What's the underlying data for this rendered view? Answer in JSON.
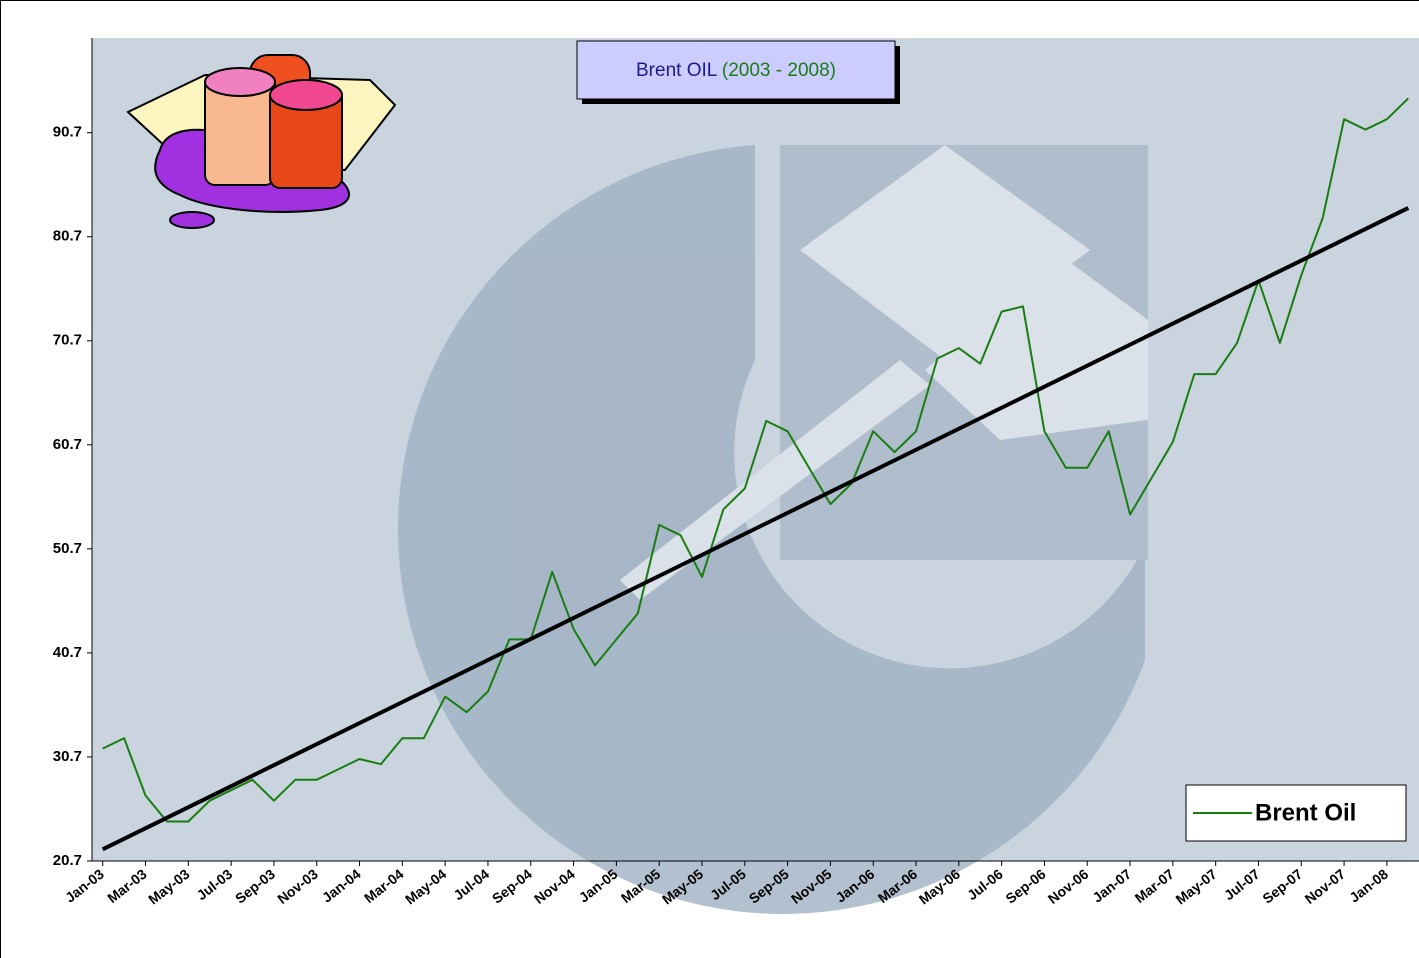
{
  "chart_data": {
    "type": "line",
    "title": "Brent OIL",
    "subtitle": "(2003 - 2008)",
    "categories": [
      "Jan-03",
      null,
      "Mar-03",
      null,
      "May-03",
      null,
      "Jul-03",
      null,
      "Sep-03",
      null,
      "Nov-03",
      null,
      "Jan-04",
      null,
      "Mar-04",
      null,
      "May-04",
      null,
      "Jul-04",
      null,
      "Sep-04",
      null,
      "Nov-04",
      null,
      "Jan-05",
      null,
      "Mar-05",
      null,
      "May-05",
      null,
      "Jul-05",
      null,
      "Sep-05",
      null,
      "Nov-05",
      null,
      "Jan-06",
      null,
      "Mar-06",
      null,
      "May-06",
      null,
      "Jul-06",
      null,
      "Sep-06",
      null,
      "Nov-06",
      null,
      "Jan-07",
      null,
      "Mar-07",
      null,
      "May-07",
      null,
      "Jul-07",
      null,
      "Sep-07",
      null,
      "Nov-07",
      null,
      "Jan-08",
      null
    ],
    "series": [
      {
        "name": "Brent Oil",
        "color": "#1a7d12",
        "values": [
          31.5,
          32.5,
          27,
          24.5,
          24.5,
          26.5,
          27.5,
          28.5,
          26.5,
          28.5,
          28.5,
          29.5,
          30.5,
          30,
          32.5,
          32.5,
          36.5,
          35,
          37,
          42,
          42,
          48.5,
          43,
          39.5,
          42,
          44.5,
          53,
          52,
          48,
          54.5,
          56.5,
          63,
          62,
          58.5,
          55,
          57,
          62,
          60,
          62,
          69,
          70,
          68.5,
          73.5,
          74,
          62,
          58.5,
          58.5,
          62,
          54,
          57.5,
          61,
          67.5,
          67.5,
          70.5,
          76.5,
          70.5,
          77,
          82.5,
          92,
          91,
          92,
          94
        ]
      }
    ],
    "trendline": true,
    "trendline_color": "#000000",
    "ylim": [
      20.7,
      99.8
    ],
    "yticks": [
      20.7,
      30.7,
      40.7,
      50.7,
      60.7,
      70.7,
      80.7,
      90.7
    ],
    "grid": false,
    "legend": "lower right"
  }
}
